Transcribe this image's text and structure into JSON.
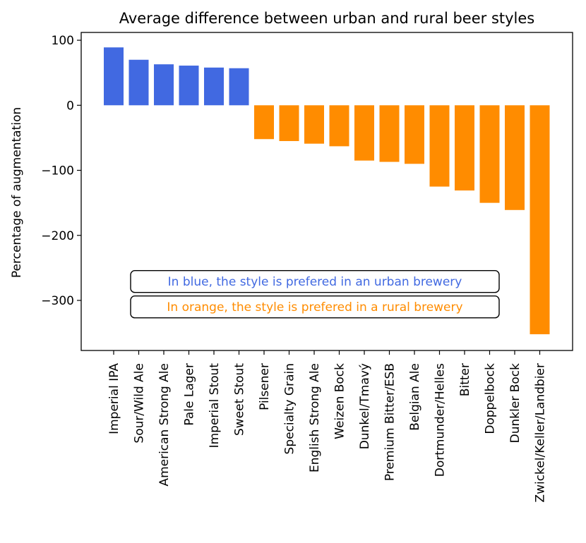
{
  "chart_data": {
    "type": "bar",
    "title": "Average difference between urban and rural beer styles",
    "xlabel": "",
    "ylabel": "Percentage of augmentation",
    "ylim": [
      -377,
      112
    ],
    "yticks": [
      100,
      0,
      -100,
      -200,
      -300
    ],
    "grid": false,
    "categories": [
      "Imperial IPA",
      "Sour/Wild Ale",
      "American Strong Ale",
      "Pale Lager",
      "Imperial Stout",
      "Sweet Stout",
      "Pilsener",
      "Specialty Grain",
      "English Strong Ale",
      "Weizen Bock",
      "Dunkel/Tmavý",
      "Premium Bitter/ESB",
      "Belgian Ale",
      "Dortmunder/Helles",
      "Bitter",
      "Doppelbock",
      "Dunkler Bock",
      "Zwickel/Keller/Landbier"
    ],
    "values": [
      89,
      70,
      63,
      61,
      58,
      57,
      -52,
      -55,
      -59,
      -63,
      -85,
      -87,
      -90,
      -125,
      -131,
      -150,
      -161,
      -352
    ],
    "colors": {
      "positive": "#4169E1",
      "negative": "#FF8C00"
    },
    "annotations": [
      {
        "text": "In blue, the style is prefered in an urban brewery",
        "color": "#4169E1",
        "y": -271,
        "x_center_index": 8
      },
      {
        "text": "In orange, the style is prefered in a rural brewery",
        "color": "#FF8C00",
        "y": -310,
        "x_center_index": 8
      }
    ]
  }
}
